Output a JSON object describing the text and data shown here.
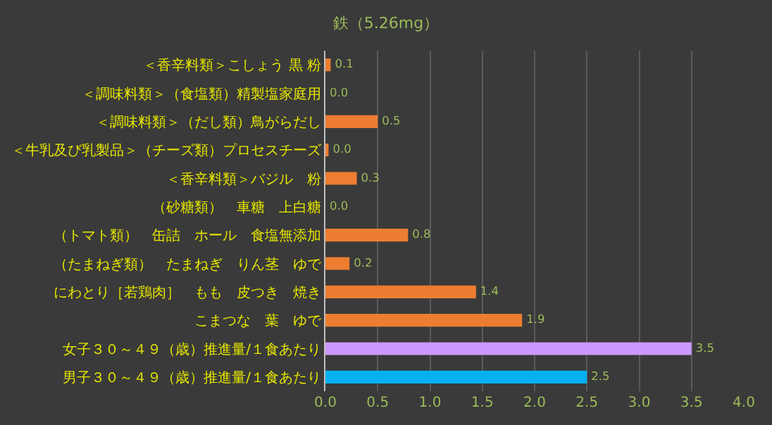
{
  "chart_data": {
    "type": "bar",
    "orientation": "horizontal",
    "title": "鉄（5.26mg）",
    "categories": [
      "＜香辛料類＞こしょう 黒 粉",
      "＜調味料類＞（食塩類）精製塩家庭用",
      "＜調味料類＞（だし類）鳥がらだし",
      "＜牛乳及び乳製品＞（チーズ類）プロセスチーズ",
      "＜香辛料類＞バジル　粉",
      "（砂糖類）　車糖　上白糖",
      "（トマト類）　缶詰　ホール　食塩無添加",
      "（たまねぎ類）　たまねぎ　りん茎　ゆで",
      "にわとり［若鶏肉］　もも　皮つき　焼き",
      "こまつな　葉　ゆで",
      "女子３０～４９（歳）推進量/１食あたり",
      "男子３０～４９（歳）推進量/１食あたり"
    ],
    "values": [
      0.05,
      0,
      0.5,
      0.03,
      0.3,
      0,
      0.79,
      0.23,
      1.44,
      1.88,
      3.5,
      2.5
    ],
    "value_labels": [
      "0.1",
      "0.0",
      "0.5",
      "0.0",
      "0.3",
      "0.0",
      "0.8",
      "0.2",
      "1.4",
      "1.9",
      "3.5",
      "2.5"
    ],
    "colors": [
      "#ed7d31",
      "#ed7d31",
      "#ed7d31",
      "#ed7d31",
      "#ed7d31",
      "#ed7d31",
      "#ed7d31",
      "#ed7d31",
      "#ed7d31",
      "#ed7d31",
      "#cc99ff",
      "#00b0f0"
    ],
    "xlim": [
      0,
      4.0
    ],
    "xticks": [
      {
        "value": 0,
        "label": "0.0"
      },
      {
        "value": 0.5,
        "label": "0.5"
      },
      {
        "value": 1,
        "label": "1.0"
      },
      {
        "value": 1.5,
        "label": "1.5"
      },
      {
        "value": 2,
        "label": "2.0"
      },
      {
        "value": 2.5,
        "label": "2.5"
      },
      {
        "value": 3,
        "label": "3.0"
      },
      {
        "value": 3.5,
        "label": "3.5"
      },
      {
        "value": 4,
        "label": "4.0"
      }
    ],
    "grid": "x"
  }
}
